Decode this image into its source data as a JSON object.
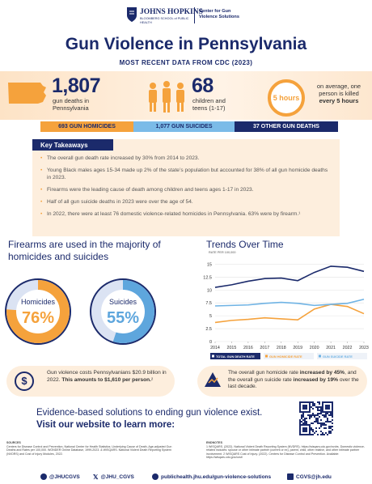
{
  "header": {
    "org": "JOHNS HOPKINS",
    "school": "BLOOMBERG SCHOOL of PUBLIC HEALTH",
    "center": "Center for Gun Violence Solutions"
  },
  "title": "Gun Violence in Pennsylvania",
  "subtitle": "MOST RECENT DATA FROM CDC (2023)",
  "stats": {
    "deaths": "1,807",
    "deaths_label": "gun deaths in Pennsylvania",
    "youth": "68",
    "youth_label": "children and teens (1-17)",
    "clock": "5 hours",
    "clock_text": "on average, one person is killed",
    "clock_bold": "every 5 hours"
  },
  "breakdown": [
    "693 GUN HOMICIDES",
    "1,077 GUN SUICIDES",
    "37 OTHER GUN DEATHS"
  ],
  "takeaways": {
    "title": "Key Takeaways",
    "items": [
      "The overall gun death rate increased by 30% from 2014 to 2023.",
      "Young Black males ages 15-34 made up 2% of the state’s population but accounted for 38% of all gun homicide deaths in 2023.",
      "Firearms were the leading cause of death among children and teens ages 1-17 in 2023.",
      "Half of all gun suicide deaths in 2023 were over the age of 54.",
      "In 2022, there were at least 76 domestic violence-related homicides in Pennsylvania. 63% were by firearm.¹"
    ]
  },
  "share": {
    "title": "Firearms are used in the majority of homicides and suicides",
    "donuts": [
      {
        "name": "Homicides",
        "value": 76,
        "label": "76%",
        "color": "#f5a23c"
      },
      {
        "name": "Suicides",
        "value": 55,
        "label": "55%",
        "color": "#5ea6dd"
      }
    ]
  },
  "trends": {
    "type": "line",
    "title": "Trends Over Time",
    "y_label": "RATE PER 100,000",
    "x": [
      2014,
      2015,
      2016,
      2017,
      2018,
      2019,
      2020,
      2021,
      2022,
      2023
    ],
    "xlim": [
      2014,
      2023
    ],
    "xticks": [
      2014,
      2015,
      2016,
      2017,
      2018,
      2019,
      2020,
      2021,
      2022,
      2023
    ],
    "ylim": [
      0,
      16
    ],
    "yticks": [
      0,
      2.5,
      5,
      7.5,
      10,
      12.5,
      15
    ],
    "series": [
      {
        "name": "TOTAL GUN DEATH RATE",
        "color": "#1b2a6b",
        "values": [
          10.5,
          11.0,
          11.7,
          12.2,
          12.3,
          11.8,
          13.4,
          14.6,
          14.4,
          13.6
        ]
      },
      {
        "name": "GUN HOMICIDE RATE",
        "color": "#f5a23c",
        "values": [
          3.7,
          4.1,
          4.3,
          4.6,
          4.4,
          4.2,
          6.3,
          7.2,
          6.8,
          5.4
        ]
      },
      {
        "name": "GUN SUICIDE RATE",
        "color": "#6fb3e4",
        "values": [
          6.9,
          7.0,
          7.1,
          7.4,
          7.6,
          7.4,
          7.0,
          7.2,
          7.4,
          8.2
        ]
      }
    ]
  },
  "callouts": {
    "cost": {
      "text": "Gun violence costs Pennsylvanians $20.9 billion in 2022. ",
      "bold": "This amounts to $1,610 per person.",
      "note": "²"
    },
    "trend": {
      "t1": "The overall gun homicide rate ",
      "b1": "increased by 45%",
      "t2": ", and the overall gun suicide rate ",
      "b2": "increased by 19%",
      "t3": " over the last decade."
    }
  },
  "cta": {
    "line1": "Evidence-based solutions to ending gun violence exist.",
    "line2": "Visit our website to learn more:"
  },
  "sources": {
    "title": "SOURCES",
    "text": "Centers for Disease Control and Prevention, National Center for Health Statistics. Underlying Cause of Death, Age-adjusted Gun Deaths and Rates per 100,000. WONDER Online Database, 1999-2023. & WISQARS. National Violent Death Reporting System (NVDRS) and Cost of Injury Modules, 2022."
  },
  "endnotes": {
    "title": "ENDNOTES",
    "text": "1 WISQARS. (2022). National Violent Death Reporting System (NVDRS). https://wisqars.cdc.gov/nvdrs. Domestic violence-related includes: spouse or other intimate partner (current or ex), parent, child, other relative, and other intimate partner involvement. 2 WISQARS Cost of Injury. (2022). Centers for Disease Control and Prevention. Available: https://wisqars.cdc.gov/cost/"
  },
  "footer": [
    "@JHUCGVS",
    "@JHU_CGVS",
    "publichealth.jhu.edu/gun-violence-solutions",
    "CGVS@jh.edu"
  ]
}
